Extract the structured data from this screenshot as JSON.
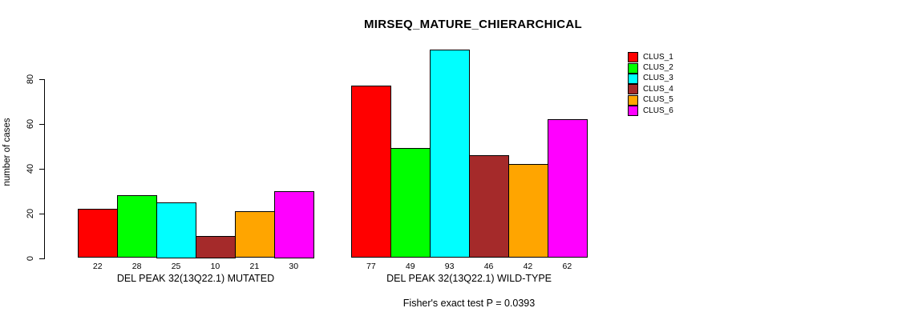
{
  "chart_data": {
    "type": "bar",
    "title": "MIRSEQ_MATURE_CHIERARCHICAL",
    "ylabel": "number of cases",
    "footer": "Fisher's exact test P = 0.0393",
    "ylim": [
      0,
      80
    ],
    "yticks": [
      "0",
      "20",
      "40",
      "60",
      "80"
    ],
    "grid": false,
    "legend_position": "top-right",
    "value_labels_shown": true,
    "axis_color": "#000000",
    "background_color": "#ffffff",
    "series": [
      {
        "name": "CLUS_1",
        "color": "#ff0000"
      },
      {
        "name": "CLUS_2",
        "color": "#00ff00"
      },
      {
        "name": "CLUS_3",
        "color": "#00ffff"
      },
      {
        "name": "CLUS_4",
        "color": "#a52a2a"
      },
      {
        "name": "CLUS_5",
        "color": "#ffa500"
      },
      {
        "name": "CLUS_6",
        "color": "#ff00ff"
      }
    ],
    "groups": [
      {
        "label": "DEL PEAK 32(13Q22.1) MUTATED",
        "values": [
          22,
          28,
          25,
          10,
          21,
          30
        ]
      },
      {
        "label": "DEL PEAK 32(13Q22.1) WILD-TYPE",
        "values": [
          77,
          49,
          93,
          46,
          42,
          62
        ]
      }
    ]
  }
}
